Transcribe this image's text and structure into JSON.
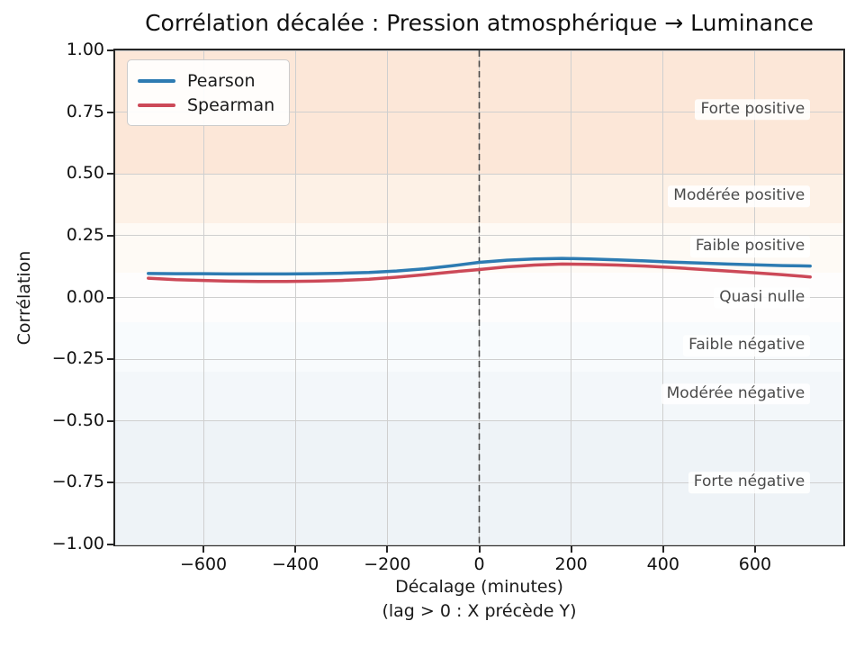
{
  "chart_data": {
    "type": "line",
    "title": "Corrélation décalée : Pression atmosphérique → Luminance",
    "xlabel": "Décalage (minutes)",
    "xlabel_note": "(lag > 0 : X précède Y)",
    "ylabel": "Corrélation",
    "xlim": [
      -792,
      792
    ],
    "ylim": [
      -1.0,
      1.0
    ],
    "grid": true,
    "legend_position": "upper left",
    "xtick_values": [
      -600,
      -400,
      -200,
      0,
      200,
      400,
      600
    ],
    "xtick_labels": [
      "−600",
      "−400",
      "−200",
      "0",
      "200",
      "400",
      "600"
    ],
    "ytick_values": [
      1.0,
      0.75,
      0.5,
      0.25,
      0.0,
      -0.25,
      -0.5,
      -0.75,
      -1.0
    ],
    "ytick_labels": [
      "1.00",
      "0.75",
      "0.50",
      "0.25",
      "0.00",
      "−0.25",
      "−0.50",
      "−0.75",
      "−1.00"
    ],
    "zero_line": {
      "x": 0,
      "style": "dashed",
      "color": "#4a4a4a"
    },
    "x": [
      -720,
      -660,
      -600,
      -540,
      -480,
      -420,
      -360,
      -300,
      -240,
      -180,
      -120,
      -60,
      0,
      60,
      120,
      180,
      240,
      300,
      360,
      420,
      480,
      540,
      600,
      660,
      720
    ],
    "series": [
      {
        "name": "Pearson",
        "color": "#2d7bb2",
        "values": [
          0.097,
          0.096,
          0.096,
          0.095,
          0.095,
          0.095,
          0.096,
          0.098,
          0.101,
          0.107,
          0.116,
          0.128,
          0.142,
          0.151,
          0.156,
          0.158,
          0.156,
          0.152,
          0.148,
          0.143,
          0.139,
          0.135,
          0.132,
          0.129,
          0.127
        ]
      },
      {
        "name": "Spearman",
        "color": "#cc4958",
        "values": [
          0.078,
          0.072,
          0.069,
          0.066,
          0.065,
          0.065,
          0.066,
          0.069,
          0.074,
          0.082,
          0.092,
          0.103,
          0.113,
          0.124,
          0.131,
          0.135,
          0.134,
          0.131,
          0.127,
          0.121,
          0.114,
          0.107,
          0.1,
          0.092,
          0.083
        ]
      }
    ],
    "zones": [
      {
        "label": "Forte positive",
        "from": 0.5,
        "to": 1.0,
        "color": "#fce7d8",
        "label_y": 0.76
      },
      {
        "label": "Modérée positive",
        "from": 0.3,
        "to": 0.5,
        "color": "#fdf1e6",
        "label_y": 0.41
      },
      {
        "label": "Faible positive",
        "from": 0.1,
        "to": 0.3,
        "color": "#fefaf5",
        "label_y": 0.205
      },
      {
        "label": "Quasi nulle",
        "from": -0.1,
        "to": 0.1,
        "color": "#fefdfd",
        "label_y": 0.0
      },
      {
        "label": "Faible négative",
        "from": -0.3,
        "to": -0.1,
        "color": "#f8fbfd",
        "label_y": -0.195
      },
      {
        "label": "Modérée négative",
        "from": -0.5,
        "to": -0.3,
        "color": "#f3f7fa",
        "label_y": -0.39
      },
      {
        "label": "Forte négative",
        "from": -1.0,
        "to": -0.5,
        "color": "#eef3f7",
        "label_y": -0.75
      }
    ],
    "zone_label_anchor_x": 720
  }
}
